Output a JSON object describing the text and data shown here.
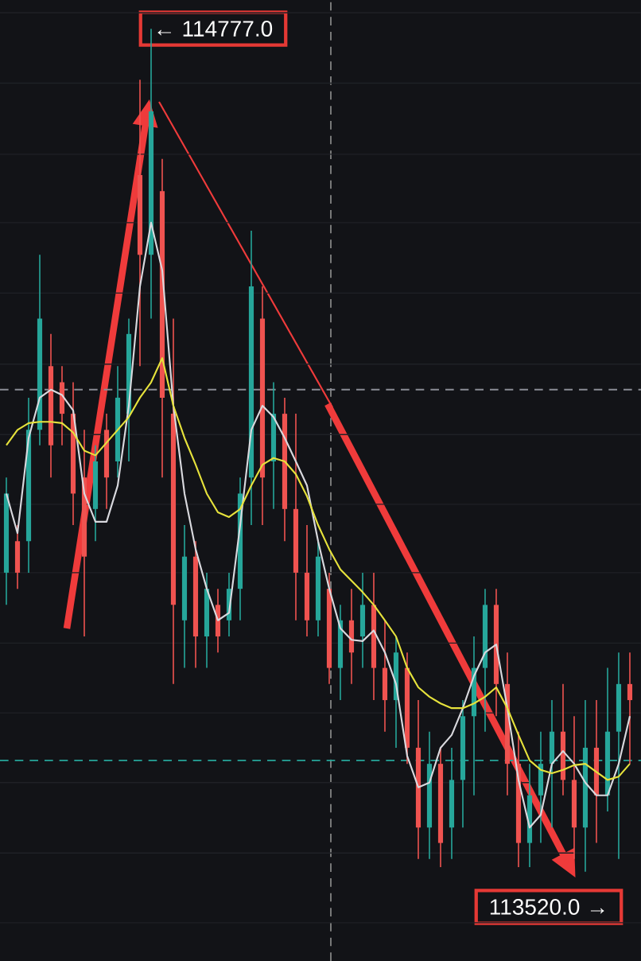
{
  "chart_data": {
    "type": "candlestick",
    "categories": [
      null,
      null,
      null,
      null,
      null,
      null,
      null,
      null,
      null,
      null,
      null,
      null,
      null,
      null,
      null,
      null,
      null,
      null,
      null,
      null,
      null,
      null,
      null,
      null,
      null,
      null,
      null,
      null,
      null,
      null,
      null,
      null,
      null,
      null,
      null,
      null,
      null,
      null,
      null,
      null,
      null,
      null,
      null,
      null,
      null,
      null,
      null,
      null,
      null,
      null,
      null,
      null,
      null,
      null,
      null,
      null,
      null
    ],
    "ohlc": [
      [
        113966,
        114108,
        113918,
        114084
      ],
      [
        114013,
        114037,
        113942,
        113966
      ],
      [
        114013,
        114227,
        113966,
        114179
      ],
      [
        114179,
        114440,
        114156,
        114345
      ],
      [
        114274,
        114322,
        114108,
        114156
      ],
      [
        114250,
        114274,
        114156,
        114203
      ],
      [
        114203,
        114250,
        114037,
        114084
      ],
      [
        114108,
        114179,
        113871,
        113990
      ],
      [
        114061,
        114156,
        114013,
        114132
      ],
      [
        114179,
        114203,
        114061,
        114108
      ],
      [
        114132,
        114274,
        114108,
        114227
      ],
      [
        114203,
        114345,
        114132,
        114322
      ],
      [
        114559,
        114701,
        114274,
        114440
      ],
      [
        114440,
        114777,
        114345,
        114654
      ],
      [
        114535,
        114583,
        114108,
        114227
      ],
      [
        114203,
        114345,
        113800,
        113918
      ],
      [
        113895,
        114037,
        113824,
        113990
      ],
      [
        113990,
        114013,
        113824,
        113871
      ],
      [
        113871,
        113966,
        113824,
        113942
      ],
      [
        113918,
        113942,
        113847,
        113871
      ],
      [
        113895,
        113966,
        113871,
        113942
      ],
      [
        113942,
        114108,
        113895,
        114084
      ],
      [
        114108,
        114476,
        114037,
        114393
      ],
      [
        114345,
        114393,
        114037,
        114108
      ],
      [
        114132,
        114250,
        114061,
        114203
      ],
      [
        114203,
        114227,
        114013,
        114061
      ],
      [
        114061,
        114203,
        113895,
        113966
      ],
      [
        113966,
        114037,
        113871,
        113895
      ],
      [
        113895,
        114013,
        113871,
        113990
      ],
      [
        113942,
        113966,
        113800,
        113824
      ],
      [
        113824,
        113918,
        113776,
        113895
      ],
      [
        113895,
        113942,
        113800,
        113847
      ],
      [
        113871,
        113966,
        113824,
        113918
      ],
      [
        113918,
        113966,
        113776,
        113824
      ],
      [
        113824,
        113895,
        113729,
        113776
      ],
      [
        113776,
        113871,
        113705,
        113847
      ],
      [
        113824,
        113847,
        113681,
        113705
      ],
      [
        113705,
        113776,
        113539,
        113586
      ],
      [
        113586,
        113729,
        113539,
        113681
      ],
      [
        113681,
        113705,
        113527,
        113563
      ],
      [
        113586,
        113705,
        113539,
        113657
      ],
      [
        113657,
        113776,
        113586,
        113752
      ],
      [
        113752,
        113871,
        113634,
        113824
      ],
      [
        113824,
        113942,
        113729,
        113918
      ],
      [
        113918,
        113942,
        113752,
        113800
      ],
      [
        113800,
        113847,
        113634,
        113681
      ],
      [
        113681,
        113729,
        113527,
        113563
      ],
      [
        113563,
        113681,
        113527,
        113634
      ],
      [
        113634,
        113729,
        113563,
        113681
      ],
      [
        113681,
        113776,
        113586,
        113729
      ],
      [
        113729,
        113800,
        113634,
        113657
      ],
      [
        113657,
        113752,
        113539,
        113586
      ],
      [
        113586,
        113776,
        113520,
        113705
      ],
      [
        113705,
        113776,
        113563,
        113634
      ],
      [
        113634,
        113824,
        113610,
        113729
      ],
      [
        113729,
        113847,
        113539,
        113800
      ],
      [
        113800,
        113847,
        113681,
        113776
      ]
    ],
    "colors": [
      "#26a69a",
      "#ef5350",
      "#26a69a",
      "#26a69a",
      "#ef5350",
      "#ef5350",
      "#ef5350",
      "#ef5350",
      "#26a69a",
      "#ef5350",
      "#26a69a",
      "#26a69a",
      "#ef5350",
      "#26a69a",
      "#ef5350",
      "#ef5350",
      "#26a69a",
      "#ef5350",
      "#26a69a",
      "#ef5350",
      "#26a69a",
      "#26a69a",
      "#26a69a",
      "#ef5350",
      "#26a69a",
      "#ef5350",
      "#ef5350",
      "#ef5350",
      "#26a69a",
      "#ef5350",
      "#26a69a",
      "#ef5350",
      "#26a69a",
      "#ef5350",
      "#ef5350",
      "#26a69a",
      "#ef5350",
      "#ef5350",
      "#26a69a",
      "#ef5350",
      "#26a69a",
      "#26a69a",
      "#26a69a",
      "#26a69a",
      "#ef5350",
      "#ef5350",
      "#ef5350",
      "#26a69a",
      "#26a69a",
      "#26a69a",
      "#ef5350",
      "#ef5350",
      "#26a69a",
      "#ef5350",
      "#26a69a",
      "#26a69a",
      "#ef5350"
    ],
    "series": [
      {
        "type": "line",
        "color": "#d9d9de",
        "values": [
          114084,
          114025,
          114167,
          114227,
          114239,
          114231,
          114208,
          114084,
          114042,
          114042,
          114096,
          114215,
          114393,
          114488,
          114417,
          114215,
          114084,
          114001,
          113942,
          113895,
          113906,
          114037,
          114179,
          114215,
          114198,
          114167,
          114132,
          114096,
          114013,
          113942,
          113883,
          113866,
          113864,
          113880,
          113847,
          113800,
          113693,
          113646,
          113653,
          113705,
          113724,
          113764,
          113812,
          113847,
          113859,
          113764,
          113657,
          113586,
          113605,
          113681,
          113700,
          113681,
          113653,
          113634,
          113634,
          113681,
          113752
        ]
      },
      {
        "type": "line",
        "color": "#e6e23c",
        "values": [
          114156,
          114179,
          114189,
          114191,
          114191,
          114189,
          114175,
          114148,
          114141,
          114160,
          114179,
          114198,
          114227,
          114250,
          114286,
          114215,
          114167,
          114127,
          114084,
          114056,
          114049,
          114061,
          114096,
          114127,
          114137,
          114132,
          114113,
          114080,
          114037,
          114001,
          113971,
          113954,
          113937,
          113918,
          113895,
          113871,
          113824,
          113795,
          113781,
          113771,
          113764,
          113764,
          113771,
          113781,
          113795,
          113764,
          113724,
          113686,
          113672,
          113667,
          113672,
          113679,
          113681,
          113669,
          113657,
          113662,
          113681
        ]
      }
    ],
    "ylim": [
      113387,
      114820
    ],
    "yticks": [
      {
        "value": 113444,
        "label": null
      },
      {
        "value": 113548,
        "label": null
      },
      {
        "value": 113653,
        "label": null
      },
      {
        "value": 113757,
        "label": null
      },
      {
        "value": 113861,
        "label": null
      },
      {
        "value": 113966,
        "label": null
      },
      {
        "value": 114068,
        "label": null
      },
      {
        "value": 114172,
        "label": null
      },
      {
        "value": 114277,
        "label": null
      },
      {
        "value": 114383,
        "label": null
      },
      {
        "value": 114488,
        "label": null
      },
      {
        "value": 114590,
        "label": null
      },
      {
        "value": 114696,
        "label": null
      },
      {
        "value": 114801,
        "label": null
      }
    ],
    "grid": "y",
    "ref_lines": [
      {
        "axis": "y",
        "value": 114239,
        "color": "#8a8d96",
        "line_style": "dashed"
      },
      {
        "axis": "y",
        "value": 113686,
        "color": "#26a69a",
        "line_style": "dashed"
      }
    ],
    "annotations": [
      "← 114777.0",
      "113520.0 →"
    ]
  }
}
